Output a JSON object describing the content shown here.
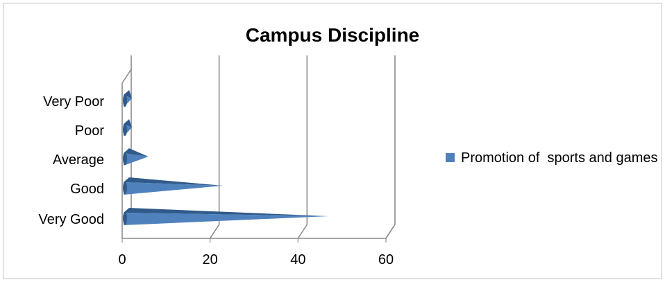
{
  "chart_data": {
    "type": "bar",
    "orientation": "horizontal",
    "style": "3d-cone",
    "title": "Campus Discipline",
    "categories": [
      "Very Good",
      "Good",
      "Average",
      "Poor",
      "Very Poor"
    ],
    "series": [
      {
        "name": "Promotion of  sports and games",
        "values": [
          46,
          22,
          5,
          0,
          1
        ]
      }
    ],
    "xlim": [
      0,
      60
    ],
    "x_ticks": [
      "0",
      "20",
      "40",
      "60"
    ],
    "grid": "vertical",
    "legend": "right",
    "colors": {
      "series": "#4f81bd",
      "series_dark": "#2f5a8a",
      "grid": "#8c8c8c",
      "border": "#bfbfbf"
    }
  }
}
